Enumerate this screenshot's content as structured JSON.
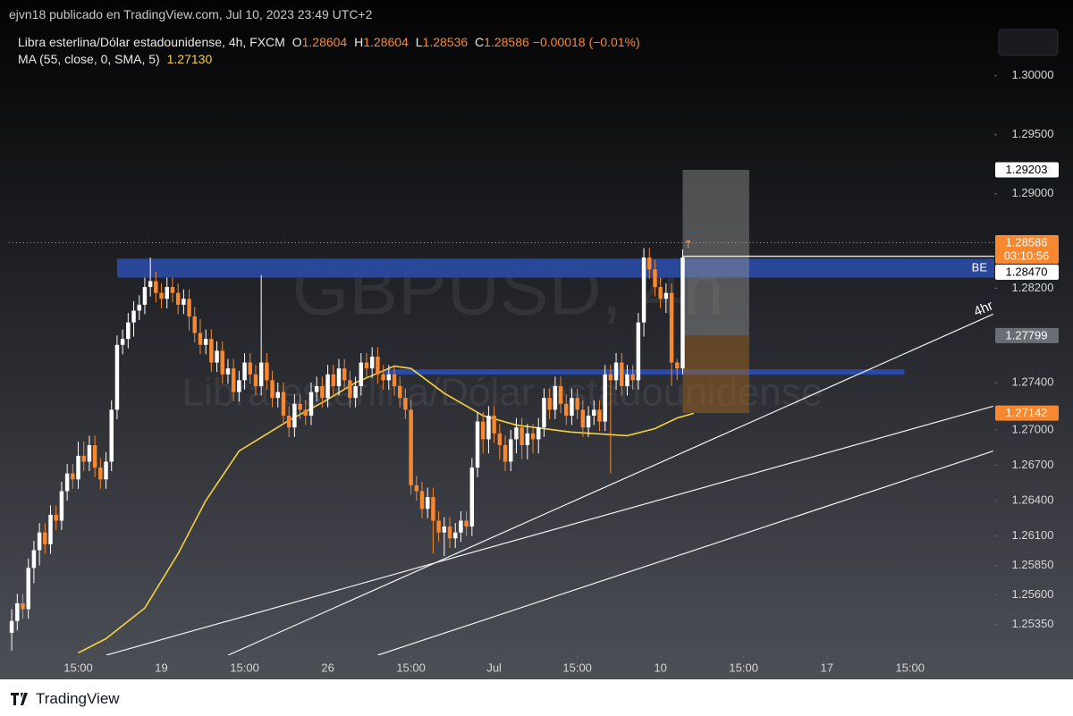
{
  "header": {
    "text": "ejvn18 publicado en TradingView.com, Jul 10, 2023 23:49 UTC+2"
  },
  "chart_data": {
    "type": "candlestick",
    "title": "Libra esterlina/Dólar estadounidense, 4h, FXCM",
    "watermark": "GBPUSD, 4h",
    "watermark_subtitle": "Libra esterlina/Dólar estadounidense",
    "legend": [
      {
        "key": "O",
        "value": 1.28604,
        "label": "1.28604"
      },
      {
        "key": "H",
        "value": 1.28604,
        "label": "1.28604"
      },
      {
        "key": "L",
        "value": 1.28536,
        "label": "1.28536"
      },
      {
        "key": "C",
        "value": 1.28586,
        "label": "1.28586"
      }
    ],
    "change": "−0.00018 (−0.01%)",
    "up_color": "#ffffff",
    "down_color": "#f7882f",
    "ohlc": [
      [
        1.2528,
        1.2548,
        1.2513,
        1.2538
      ],
      [
        1.2538,
        1.2561,
        1.253,
        1.2553
      ],
      [
        1.2553,
        1.2561,
        1.254,
        1.2548
      ],
      [
        1.2548,
        1.2591,
        1.254,
        1.2583
      ],
      [
        1.2583,
        1.2606,
        1.257,
        1.2598
      ],
      [
        1.2598,
        1.2621,
        1.2585,
        1.2613
      ],
      [
        1.2613,
        1.2621,
        1.2595,
        1.2603
      ],
      [
        1.2603,
        1.2636,
        1.2595,
        1.2628
      ],
      [
        1.2628,
        1.2636,
        1.2615,
        1.2623
      ],
      [
        1.2623,
        1.2656,
        1.2615,
        1.2648
      ],
      [
        1.2648,
        1.2671,
        1.264,
        1.2663
      ],
      [
        1.2663,
        1.2671,
        1.265,
        1.2658
      ],
      [
        1.2658,
        1.269,
        1.265,
        1.2678
      ],
      [
        1.2678,
        1.269,
        1.2665,
        1.2673
      ],
      [
        1.2673,
        1.2695,
        1.2665,
        1.2687
      ],
      [
        1.2687,
        1.2695,
        1.266,
        1.2668
      ],
      [
        1.2668,
        1.2676,
        1.265,
        1.2658
      ],
      [
        1.2658,
        1.2681,
        1.265,
        1.2673
      ],
      [
        1.2673,
        1.2725,
        1.2665,
        1.2717
      ],
      [
        1.2717,
        1.278,
        1.2709,
        1.2772
      ],
      [
        1.2772,
        1.2785,
        1.2764,
        1.2777
      ],
      [
        1.2777,
        1.2799,
        1.2769,
        1.2791
      ],
      [
        1.2791,
        1.2809,
        1.2779,
        1.2801
      ],
      [
        1.2801,
        1.2814,
        1.2793,
        1.2806
      ],
      [
        1.2806,
        1.2829,
        1.2798,
        1.2821
      ],
      [
        1.2821,
        1.2846,
        1.2813,
        1.2826
      ],
      [
        1.2826,
        1.2834,
        1.2808,
        1.2816
      ],
      [
        1.2816,
        1.2824,
        1.2803,
        1.2811
      ],
      [
        1.2811,
        1.2829,
        1.2803,
        1.2821
      ],
      [
        1.2821,
        1.2829,
        1.2808,
        1.2816
      ],
      [
        1.2816,
        1.2824,
        1.2798,
        1.2806
      ],
      [
        1.2806,
        1.2819,
        1.2798,
        1.2811
      ],
      [
        1.2811,
        1.2819,
        1.2784,
        1.2796
      ],
      [
        1.2796,
        1.2804,
        1.2774,
        1.2782
      ],
      [
        1.2782,
        1.2794,
        1.2764,
        1.2772
      ],
      [
        1.2772,
        1.2785,
        1.2764,
        1.2777
      ],
      [
        1.2777,
        1.2785,
        1.2749,
        1.2757
      ],
      [
        1.2757,
        1.2775,
        1.2749,
        1.2767
      ],
      [
        1.2767,
        1.2775,
        1.2739,
        1.2747
      ],
      [
        1.2747,
        1.276,
        1.2739,
        1.2752
      ],
      [
        1.2752,
        1.276,
        1.2724,
        1.2732
      ],
      [
        1.2732,
        1.275,
        1.2724,
        1.2742
      ],
      [
        1.2742,
        1.2765,
        1.2734,
        1.2757
      ],
      [
        1.2757,
        1.2765,
        1.2739,
        1.2747
      ],
      [
        1.2747,
        1.2755,
        1.2729,
        1.2737
      ],
      [
        1.2737,
        1.2831,
        1.2729,
        1.2757
      ],
      [
        1.2757,
        1.2765,
        1.2734,
        1.2742
      ],
      [
        1.2742,
        1.275,
        1.2719,
        1.2727
      ],
      [
        1.2727,
        1.274,
        1.2719,
        1.2732
      ],
      [
        1.2732,
        1.274,
        1.2704,
        1.2712
      ],
      [
        1.2712,
        1.272,
        1.2694,
        1.2702
      ],
      [
        1.2702,
        1.273,
        1.2694,
        1.2722
      ],
      [
        1.2722,
        1.273,
        1.2709,
        1.2717
      ],
      [
        1.2717,
        1.2725,
        1.2704,
        1.2712
      ],
      [
        1.2712,
        1.274,
        1.2704,
        1.2732
      ],
      [
        1.2732,
        1.2745,
        1.2724,
        1.2737
      ],
      [
        1.2737,
        1.2745,
        1.2719,
        1.2727
      ],
      [
        1.2727,
        1.2755,
        1.2719,
        1.2747
      ],
      [
        1.2747,
        1.2755,
        1.2729,
        1.2737
      ],
      [
        1.2737,
        1.276,
        1.2729,
        1.2752
      ],
      [
        1.2752,
        1.276,
        1.2734,
        1.2742
      ],
      [
        1.2742,
        1.275,
        1.2719,
        1.2727
      ],
      [
        1.2727,
        1.2745,
        1.2719,
        1.2737
      ],
      [
        1.2737,
        1.2765,
        1.2729,
        1.2757
      ],
      [
        1.2757,
        1.2765,
        1.2744,
        1.2752
      ],
      [
        1.2752,
        1.277,
        1.2744,
        1.2762
      ],
      [
        1.2762,
        1.277,
        1.2739,
        1.2747
      ],
      [
        1.2747,
        1.2755,
        1.2734,
        1.2742
      ],
      [
        1.2742,
        1.2755,
        1.2734,
        1.2747
      ],
      [
        1.2747,
        1.2755,
        1.2729,
        1.2737
      ],
      [
        1.2737,
        1.2745,
        1.2719,
        1.2727
      ],
      [
        1.2727,
        1.2735,
        1.2709,
        1.2717
      ],
      [
        1.2717,
        1.2725,
        1.2645,
        1.2653
      ],
      [
        1.2653,
        1.2661,
        1.264,
        1.2648
      ],
      [
        1.2648,
        1.2656,
        1.2625,
        1.2633
      ],
      [
        1.2633,
        1.2651,
        1.2625,
        1.2643
      ],
      [
        1.2643,
        1.2651,
        1.2595,
        1.2623
      ],
      [
        1.2623,
        1.2631,
        1.2605,
        1.2613
      ],
      [
        1.2613,
        1.2626,
        1.2593,
        1.2618
      ],
      [
        1.2618,
        1.2626,
        1.26,
        1.2608
      ],
      [
        1.2608,
        1.2621,
        1.26,
        1.2613
      ],
      [
        1.2613,
        1.2631,
        1.2605,
        1.2623
      ],
      [
        1.2623,
        1.2631,
        1.261,
        1.2618
      ],
      [
        1.2618,
        1.2676,
        1.261,
        1.2668
      ],
      [
        1.2668,
        1.2715,
        1.266,
        1.2707
      ],
      [
        1.2707,
        1.2715,
        1.268,
        1.2692
      ],
      [
        1.2692,
        1.272,
        1.268,
        1.2712
      ],
      [
        1.2712,
        1.272,
        1.2689,
        1.2697
      ],
      [
        1.2697,
        1.2705,
        1.2675,
        1.2687
      ],
      [
        1.2687,
        1.2695,
        1.2665,
        1.2673
      ],
      [
        1.2673,
        1.27,
        1.2665,
        1.2692
      ],
      [
        1.2692,
        1.271,
        1.268,
        1.2702
      ],
      [
        1.2702,
        1.271,
        1.2675,
        1.2687
      ],
      [
        1.2687,
        1.2705,
        1.2675,
        1.2697
      ],
      [
        1.2697,
        1.2705,
        1.268,
        1.2692
      ],
      [
        1.2692,
        1.271,
        1.268,
        1.2702
      ],
      [
        1.2702,
        1.2735,
        1.2694,
        1.2727
      ],
      [
        1.2727,
        1.2735,
        1.2709,
        1.2717
      ],
      [
        1.2717,
        1.2745,
        1.2709,
        1.2737
      ],
      [
        1.2737,
        1.2745,
        1.2714,
        1.2722
      ],
      [
        1.2722,
        1.273,
        1.2704,
        1.2712
      ],
      [
        1.2712,
        1.2735,
        1.2704,
        1.2727
      ],
      [
        1.2727,
        1.2735,
        1.2709,
        1.2717
      ],
      [
        1.2717,
        1.2725,
        1.2694,
        1.2702
      ],
      [
        1.2702,
        1.272,
        1.2694,
        1.2712
      ],
      [
        1.2712,
        1.2725,
        1.2704,
        1.2717
      ],
      [
        1.2717,
        1.2725,
        1.2699,
        1.2707
      ],
      [
        1.2707,
        1.2755,
        1.2699,
        1.2747
      ],
      [
        1.2747,
        1.2755,
        1.2663,
        1.2742
      ],
      [
        1.2742,
        1.2765,
        1.2734,
        1.2757
      ],
      [
        1.2757,
        1.2765,
        1.2729,
        1.2737
      ],
      [
        1.2737,
        1.2755,
        1.2729,
        1.2747
      ],
      [
        1.2747,
        1.2755,
        1.2734,
        1.2742
      ],
      [
        1.2742,
        1.2799,
        1.2734,
        1.2791
      ],
      [
        1.2791,
        1.2854,
        1.2779,
        1.2846
      ],
      [
        1.2846,
        1.2854,
        1.2828,
        1.2836
      ],
      [
        1.2836,
        1.2844,
        1.2813,
        1.2821
      ],
      [
        1.2821,
        1.2829,
        1.2803,
        1.2811
      ],
      [
        1.2811,
        1.2824,
        1.2799,
        1.2816
      ],
      [
        1.2816,
        1.2824,
        1.2737,
        1.2757
      ],
      [
        1.2757,
        1.276,
        1.2742,
        1.2752
      ],
      [
        1.2752,
        1.2853,
        1.2747,
        1.2846
      ],
      [
        1.28604,
        1.28604,
        1.28536,
        1.28586
      ]
    ],
    "ma": {
      "label": "MA (55, close, 0, SMA, 5)",
      "value": 1.2713,
      "value_label": "1.27130",
      "color": "#f5d142",
      "x": [
        12,
        17,
        24,
        30,
        35,
        41,
        50,
        56,
        62,
        69,
        72,
        78,
        85,
        91,
        101,
        111,
        116,
        120,
        123
      ],
      "values": [
        1.2511,
        1.2523,
        1.2549,
        1.2595,
        1.264,
        1.2682,
        1.2708,
        1.2723,
        1.274,
        1.2754,
        1.2752,
        1.2731,
        1.2712,
        1.2704,
        1.2698,
        1.2695,
        1.2701,
        1.271,
        1.2714
      ]
    },
    "xlim": [
      -0.5,
      177.2
    ],
    "xticks": [
      {
        "value": 12,
        "label": "15:00"
      },
      {
        "value": 27,
        "label": "19"
      },
      {
        "value": 42,
        "label": "15:00"
      },
      {
        "value": 57,
        "label": "26"
      },
      {
        "value": 72,
        "label": "15:00"
      },
      {
        "value": 87,
        "label": "Jul"
      },
      {
        "value": 102,
        "label": "15:00"
      },
      {
        "value": 117,
        "label": "10"
      },
      {
        "value": 132,
        "label": "15:00"
      },
      {
        "value": 147,
        "label": "17"
      },
      {
        "value": 162,
        "label": "15:00"
      }
    ],
    "ylim": [
      1.2509,
      1.3043
    ],
    "yticks": [
      {
        "value": 1.3,
        "label": "1.30000"
      },
      {
        "value": 1.295,
        "label": "1.29500"
      },
      {
        "value": 1.29,
        "label": "1.29000"
      },
      {
        "value": 1.282,
        "label": "1.28200"
      },
      {
        "value": 1.274,
        "label": "1.27400"
      },
      {
        "value": 1.27,
        "label": "1.27000"
      },
      {
        "value": 1.267,
        "label": "1.26700"
      },
      {
        "value": 1.264,
        "label": "1.26400"
      },
      {
        "value": 1.261,
        "label": "1.26100"
      },
      {
        "value": 1.2585,
        "label": "1.25850"
      },
      {
        "value": 1.256,
        "label": "1.25600"
      },
      {
        "value": 1.2535,
        "label": "1.25350"
      }
    ],
    "price_labels": [
      {
        "value": 1.29203,
        "label": "1.29203",
        "color": "#ffffff",
        "text_color": "#000000"
      },
      {
        "value": 1.28586,
        "label": "1.28586",
        "color": "#f7882f",
        "text_color": "#ffffff",
        "countdown": "03:10:56"
      },
      {
        "value": 1.2847,
        "label": "1.28470",
        "color": "#ffffff",
        "text_color": "#000000"
      },
      {
        "value": 1.27799,
        "label": "1.27799",
        "color": "#6b6d75",
        "text_color": "#ffffff"
      },
      {
        "value": 1.27142,
        "label": "1.27142",
        "color": "#f7882f",
        "text_color": "#ffffff"
      }
    ],
    "zone": {
      "x0": 19,
      "y0": 1.2829,
      "y1": 1.2845,
      "label": "BE",
      "color": "#2a4aa6"
    },
    "support_line": {
      "x0": 67,
      "x1": 161,
      "value": 1.2749,
      "color": "#2a4aa6"
    },
    "position": {
      "x0": 121,
      "x1": 133
    },
    "trendlines": [
      {
        "x0": 39,
        "y0": 1.2509,
        "x1": 177,
        "y1": 1.2798
      },
      {
        "x0": 17,
        "y0": 1.2509,
        "x1": 177,
        "y1": 1.272
      },
      {
        "x0": 66,
        "y0": 1.2509,
        "x1": 177,
        "y1": 1.2682
      }
    ],
    "trend_label": "4hr"
  },
  "footer": {
    "brand": "TradingView"
  }
}
